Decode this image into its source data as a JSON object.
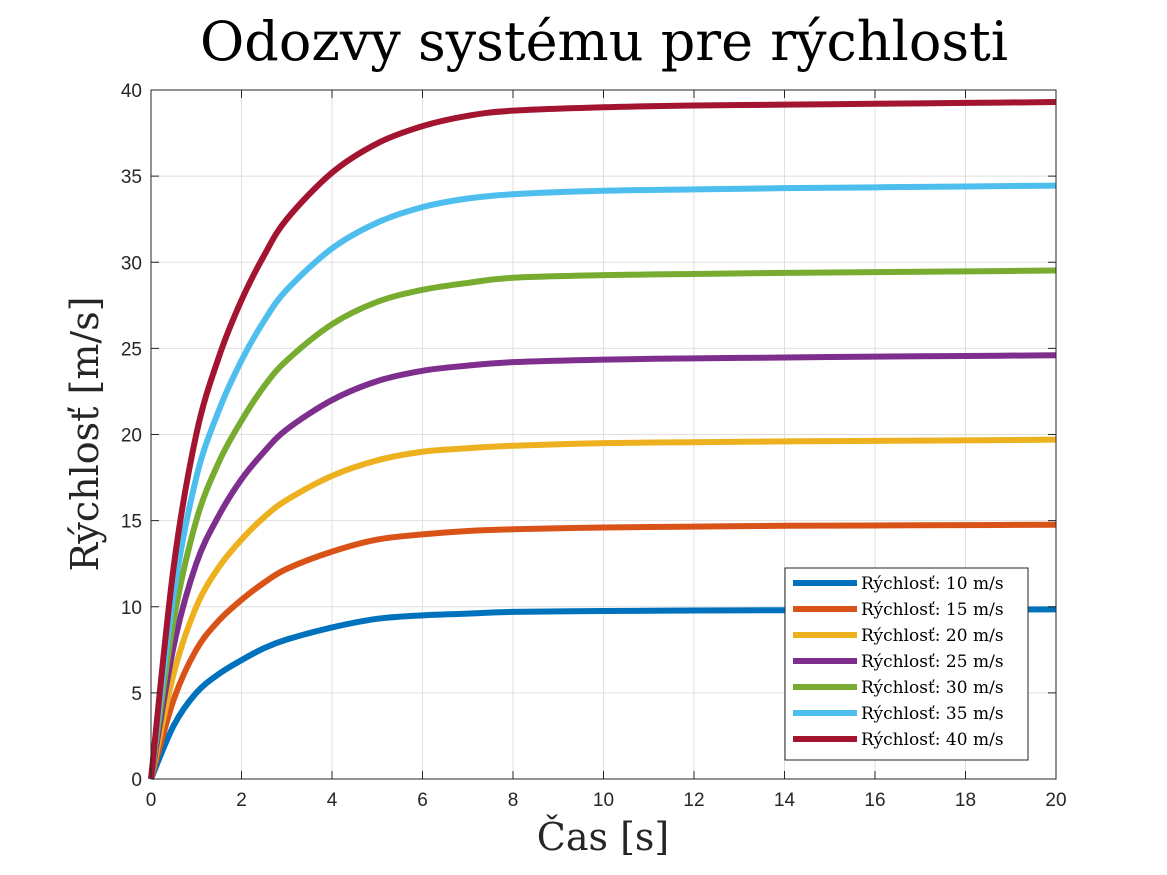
{
  "chart_data": {
    "type": "line",
    "title": "Odozvy systému pre rýchlosti",
    "xlabel": "Čas [s]",
    "ylabel": "Rýchlosť [m/s]",
    "xlim": [
      0,
      20
    ],
    "ylim": [
      0,
      40
    ],
    "xticks": [
      "0",
      "2",
      "4",
      "6",
      "8",
      "10",
      "12",
      "14",
      "16",
      "18",
      "20"
    ],
    "yticks": [
      "0",
      "5",
      "10",
      "15",
      "20",
      "25",
      "30",
      "35",
      "40"
    ],
    "grid": true,
    "legend_position": "bottom-right",
    "x": [
      0,
      0.5,
      1,
      1.5,
      2,
      2.5,
      3,
      4,
      5,
      6,
      7,
      8,
      10,
      12,
      14,
      16,
      18,
      20
    ],
    "series": [
      {
        "name": "Rýchlosť: 10 m/s",
        "color": "#0072BD",
        "values": [
          0,
          3.1,
          5.0,
          6.1,
          6.9,
          7.6,
          8.1,
          8.8,
          9.3,
          9.5,
          9.6,
          9.7,
          9.75,
          9.78,
          9.8,
          9.82,
          9.83,
          9.85
        ]
      },
      {
        "name": "Rýchlosť: 15 m/s",
        "color": "#D95319",
        "values": [
          0,
          4.6,
          7.5,
          9.2,
          10.4,
          11.4,
          12.2,
          13.2,
          13.9,
          14.2,
          14.4,
          14.5,
          14.6,
          14.65,
          14.7,
          14.72,
          14.74,
          14.76
        ]
      },
      {
        "name": "Rýchlosť: 20 m/s",
        "color": "#EDB120",
        "values": [
          0,
          6.1,
          10.0,
          12.3,
          13.9,
          15.2,
          16.2,
          17.6,
          18.5,
          19.0,
          19.2,
          19.35,
          19.5,
          19.55,
          19.6,
          19.63,
          19.66,
          19.7
        ]
      },
      {
        "name": "Rýchlosť: 25 m/s",
        "color": "#7E2F8E",
        "values": [
          0,
          7.7,
          12.5,
          15.3,
          17.4,
          19.0,
          20.3,
          22.0,
          23.1,
          23.7,
          24.0,
          24.2,
          24.35,
          24.42,
          24.47,
          24.52,
          24.56,
          24.6
        ]
      },
      {
        "name": "Rýchlosť: 30 m/s",
        "color": "#77AC30",
        "values": [
          0,
          9.2,
          15.0,
          18.4,
          20.8,
          22.8,
          24.3,
          26.4,
          27.7,
          28.4,
          28.8,
          29.1,
          29.25,
          29.32,
          29.38,
          29.43,
          29.47,
          29.52
        ]
      },
      {
        "name": "Rýchlosť: 35 m/s",
        "color": "#4DBEEE",
        "values": [
          0,
          10.7,
          17.5,
          21.4,
          24.3,
          26.6,
          28.4,
          30.8,
          32.3,
          33.2,
          33.7,
          33.95,
          34.15,
          34.23,
          34.3,
          34.35,
          34.4,
          34.45
        ]
      },
      {
        "name": "Rýchlosť: 40 m/s",
        "color": "#A2142F",
        "values": [
          0,
          12.3,
          20.0,
          24.5,
          27.8,
          30.4,
          32.5,
          35.2,
          36.9,
          37.9,
          38.5,
          38.8,
          39.0,
          39.1,
          39.15,
          39.2,
          39.25,
          39.3
        ]
      }
    ]
  }
}
